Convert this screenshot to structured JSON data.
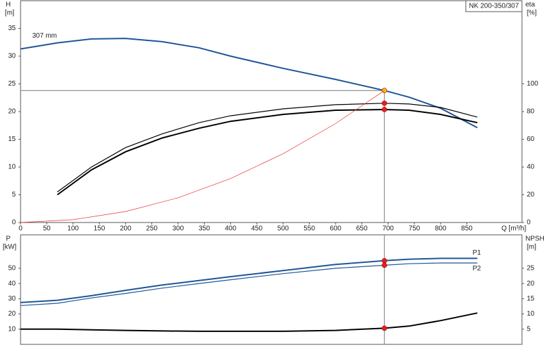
{
  "chart_data": [
    {
      "type": "line",
      "title": "NK 200-350/307",
      "ylabel": "H",
      "yunit": "[m]",
      "y2label": "eta",
      "y2unit": "[%]",
      "xlabel": "Q [m³/h]",
      "xlim": [
        0,
        955
      ],
      "xticks": [
        0,
        50,
        100,
        150,
        200,
        250,
        300,
        350,
        400,
        450,
        500,
        550,
        600,
        650,
        700,
        750,
        800,
        850
      ],
      "ylim": [
        0,
        40
      ],
      "yticks": [
        0,
        5,
        10,
        15,
        20,
        25,
        30,
        35
      ],
      "y2lim": [
        0,
        160
      ],
      "y2ticks": [
        0,
        20,
        40,
        60,
        80,
        100
      ],
      "operating_point": 693,
      "x": [
        0,
        70,
        135,
        200,
        270,
        340,
        400,
        500,
        600,
        693,
        740,
        800,
        870
      ],
      "series": [
        {
          "name": "307 mm",
          "color": "#1f5597",
          "style": "thick",
          "marker": "#f5c400",
          "reference_line": true,
          "label_pos": "start-above",
          "values": [
            31.3,
            32.4,
            33.1,
            33.2,
            32.6,
            31.5,
            30.0,
            27.8,
            25.8,
            23.8,
            22.6,
            20.6,
            17.1
          ]
        },
        {
          "color": "#000000",
          "style": "thin",
          "axis": "y2",
          "marker": "#e52020",
          "values": [
            null,
            22,
            40,
            54,
            64,
            72,
            77,
            82,
            85,
            86,
            85.5,
            83,
            76
          ]
        },
        {
          "color": "#000000",
          "style": "thick",
          "axis": "y2",
          "marker": "#e52020",
          "values": [
            null,
            20,
            38,
            51,
            61,
            68,
            73,
            78,
            81,
            81.5,
            81,
            78,
            72
          ]
        },
        {
          "color": "#e83030",
          "style": "hair",
          "x": [
            0,
            100,
            200,
            300,
            400,
            500,
            600,
            693
          ],
          "values": [
            0,
            0.5,
            1.98,
            4.46,
            7.93,
            12.39,
            17.84,
            23.8
          ]
        }
      ]
    },
    {
      "type": "line",
      "ylabel": "P",
      "yunit": "[kW]",
      "y2label": "NPSH",
      "y2unit": "[m]",
      "xlim": [
        0,
        955
      ],
      "ylim": [
        0,
        72
      ],
      "yticks": [
        10,
        20,
        30,
        40,
        50
      ],
      "y2lim": [
        0,
        36
      ],
      "y2ticks": [
        5,
        10,
        15,
        20,
        25
      ],
      "operating_point": 693,
      "x": [
        0,
        70,
        135,
        200,
        270,
        340,
        400,
        500,
        600,
        693,
        740,
        800,
        870
      ],
      "series": [
        {
          "name": "P1",
          "color": "#1f5597",
          "style": "thick",
          "marker": "#e52020",
          "label_pos": "end-above",
          "values": [
            27.5,
            29,
            32,
            35.5,
            39,
            42,
            44.5,
            48.5,
            52.5,
            55,
            56,
            56.5,
            56.5
          ]
        },
        {
          "name": "P2",
          "color": "#1f5597",
          "style": "thin",
          "marker": "#e52020",
          "label_pos": "end-below",
          "values": [
            25.5,
            27,
            30.5,
            33.5,
            37,
            40,
            42.5,
            46.5,
            50,
            52,
            53,
            53.5,
            53.5
          ]
        },
        {
          "color": "#000000",
          "style": "thick",
          "axis": "y2",
          "marker": "#e52020",
          "values": [
            5.0,
            5.0,
            4.8,
            4.6,
            4.4,
            4.3,
            4.3,
            4.3,
            4.6,
            5.3,
            6.0,
            7.8,
            10.3
          ]
        }
      ]
    }
  ]
}
